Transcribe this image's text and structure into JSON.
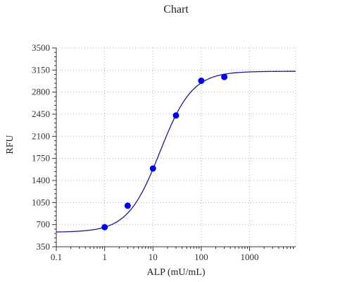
{
  "chart_data": {
    "type": "scatter",
    "title": "Chart",
    "xlabel": "ALP (mU/mL)",
    "ylabel": "RFU",
    "x_scale": "log",
    "xlim": [
      0.1,
      9000
    ],
    "ylim": [
      350,
      3500
    ],
    "x_ticks": [
      0.1,
      1,
      10,
      100,
      1000
    ],
    "x_tick_labels": [
      "0.1",
      "1",
      "10",
      "100",
      "1000"
    ],
    "y_ticks": [
      350,
      700,
      1050,
      1400,
      1750,
      2100,
      2450,
      2800,
      3150,
      3500
    ],
    "y_tick_labels": [
      "350",
      "700",
      "1050",
      "1400",
      "1750",
      "2100",
      "2450",
      "2800",
      "3150",
      "3500"
    ],
    "grid": true,
    "series": [
      {
        "type": "scatter",
        "color": "#0000ee",
        "x": [
          1,
          3,
          10,
          30,
          100,
          300
        ],
        "y": [
          660,
          1000,
          1590,
          2430,
          2980,
          3040
        ]
      },
      {
        "type": "line",
        "color": "#1a1a8c",
        "fit": "4PL",
        "bottom": 580,
        "top": 3130,
        "ec50": 14,
        "hill": 1.3
      }
    ]
  }
}
